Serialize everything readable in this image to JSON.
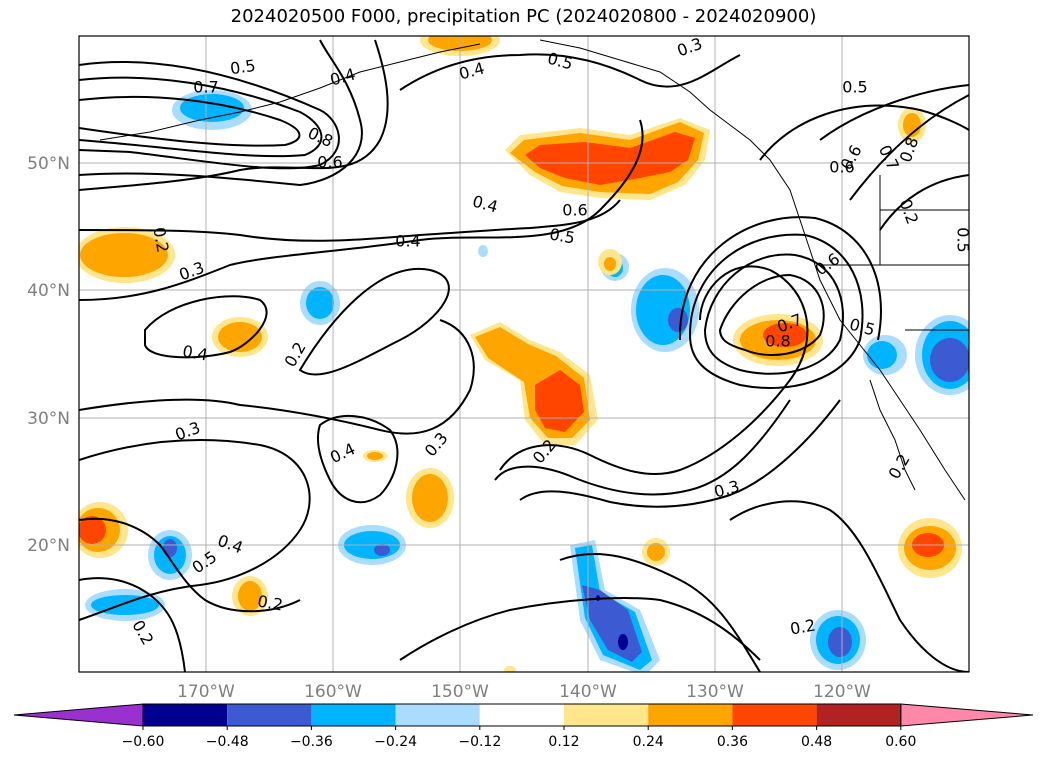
{
  "title": "2024020500 F000, precipitation PC (2024020800 - 2024020900)",
  "map": {
    "lat_labels": [
      "50°N",
      "40°N",
      "30°N",
      "20°N"
    ],
    "lon_labels": [
      "170°W",
      "160°W",
      "150°W",
      "140°W",
      "130°W",
      "120°W"
    ]
  },
  "contour_labels": [
    "0.5",
    "0.7",
    "0.4",
    "0.8",
    "0.6",
    "0.4",
    "0.5",
    "0.3",
    "0.5",
    "0.6",
    "0.4",
    "0.5",
    "0.4",
    "0.2",
    "0.3",
    "0.4",
    "0.2",
    "0.3",
    "0.4",
    "0.3",
    "0.2",
    "0.4",
    "0.5",
    "0.2",
    "0.2",
    "0.3",
    "0.2",
    "0.2",
    "0.8",
    "0.6",
    "0.5",
    "0.7",
    "0.6",
    "0.2",
    "0.5",
    "0.6",
    "0.7",
    "0.8"
  ],
  "colorbar": {
    "colors": [
      "#9b30d0",
      "#000090",
      "#3c5ad2",
      "#00b4ff",
      "#aadcff",
      "#ffffff",
      "#ffe68c",
      "#ffa500",
      "#ff4500",
      "#b22222",
      "#ff88aa"
    ],
    "ticks": [
      "−0.60",
      "−0.48",
      "−0.36",
      "−0.24",
      "−0.12",
      "0.12",
      "0.24",
      "0.36",
      "0.48",
      "0.60"
    ]
  },
  "colors": {
    "light_blue": "#aadcff",
    "blue": "#00b4ff",
    "dark_blue": "#3c5ad2",
    "navy": "#000090",
    "yellow": "#ffe68c",
    "orange": "#ffa500",
    "red_orange": "#ff4500"
  }
}
